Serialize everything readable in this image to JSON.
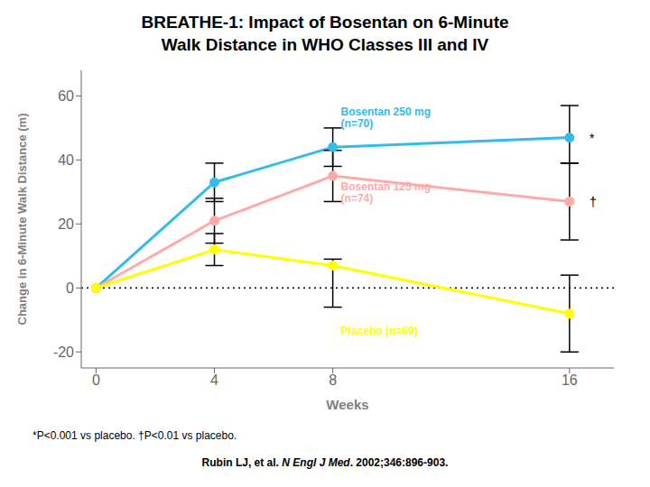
{
  "chart_data": {
    "type": "line",
    "title": "BREATHE-1: Impact of Bosentan on 6-Minute\nWalk Distance in WHO Classes III and IV",
    "x_label": "Weeks",
    "y_label": "Change in 6-Minute Walk Distance (m)",
    "x": [
      0,
      4,
      8,
      16
    ],
    "xlim": [
      -0.5,
      17.5
    ],
    "xticks": [
      0,
      4,
      8,
      16
    ],
    "ylim": [
      -25,
      68
    ],
    "yticks": [
      -20,
      0,
      20,
      40,
      60
    ],
    "grid": false,
    "series": [
      {
        "name": "Bosentan 250 mg\n(n=70)",
        "color": "#33BBEE",
        "marker": "circle",
        "line_style": "solid",
        "values": [
          0,
          33,
          44,
          47
        ],
        "error_low": [
          null,
          6,
          6,
          8
        ],
        "error_high": [
          null,
          6,
          6,
          10
        ],
        "annotation": "*"
      },
      {
        "name": "Bosentan 125 mg\n(n=74)",
        "color": "#FFAAAA",
        "marker": "circle",
        "line_style": "solid",
        "values": [
          0,
          21,
          35,
          27
        ],
        "error_low": [
          null,
          7,
          8,
          12
        ],
        "error_high": [
          null,
          7,
          8,
          12
        ],
        "annotation": "†"
      },
      {
        "name": "Placebo (n=69)",
        "color": "#FFFF00",
        "marker": "circle",
        "line_style": "solid",
        "values": [
          0,
          12,
          7,
          -8
        ],
        "error_low": [
          null,
          5,
          13,
          12
        ],
        "error_high": [
          null,
          5,
          2,
          12
        ]
      }
    ],
    "reference_lines": [
      {
        "y": 0,
        "line_style": "dotted"
      }
    ],
    "footnote": "*P<0.001 vs placebo. †P<0.01 vs placebo.",
    "source": "Rubin LJ, et al. N Engl J Med. 2002;346:896-903.",
    "source_italic": "N Engl J Med"
  }
}
